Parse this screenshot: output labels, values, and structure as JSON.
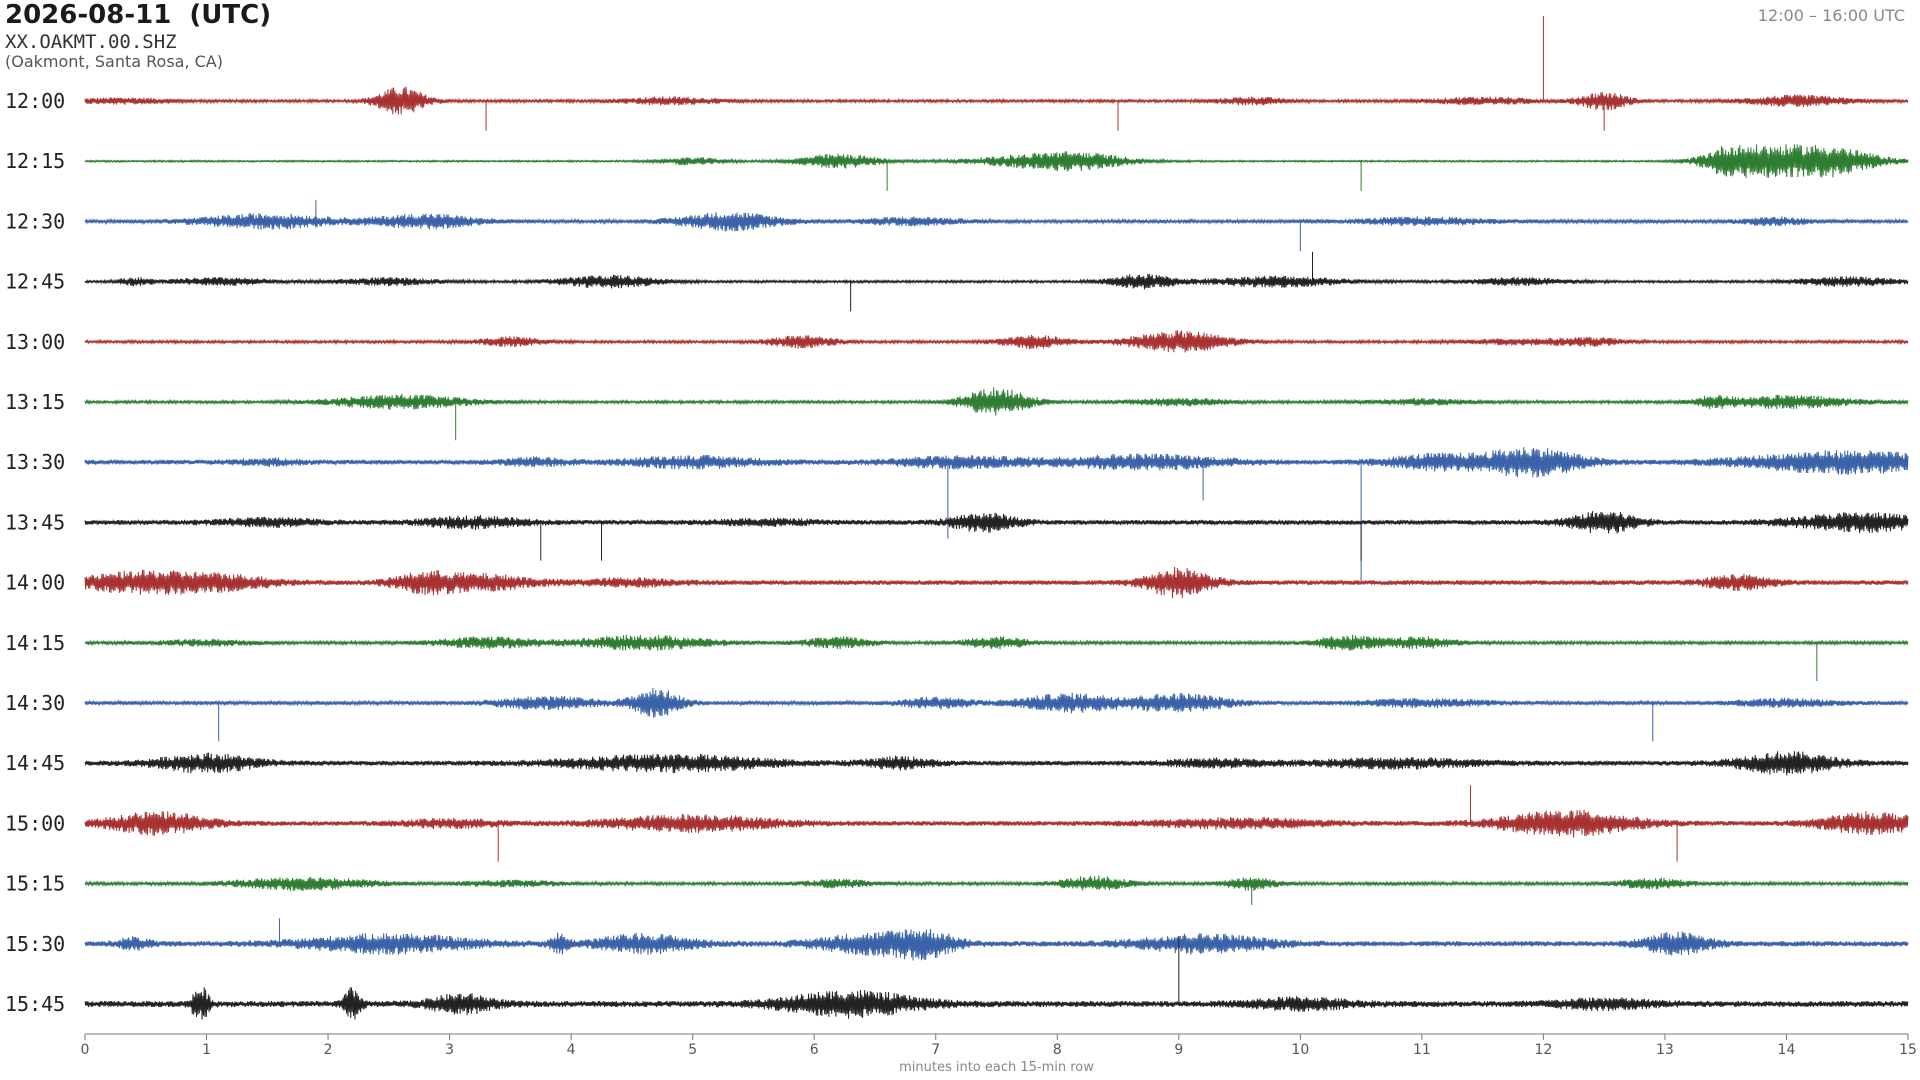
{
  "header": {
    "date": "2026-08-11  (UTC)",
    "station": "XX.OAKMT.00.SHZ",
    "location": "(Oakmont, Santa Rosa, CA)",
    "time_range": "12:00 – 16:00 UTC"
  },
  "chart_data": {
    "type": "helicorder",
    "title": "2026-08-11  (UTC)",
    "xlabel": "minutes into each 15-min row",
    "xlim": [
      0,
      15
    ],
    "x_ticks": [
      "0",
      "1",
      "2",
      "3",
      "4",
      "5",
      "6",
      "7",
      "8",
      "9",
      "10",
      "11",
      "12",
      "13",
      "14",
      "15"
    ],
    "colors": [
      "#a83232",
      "#2e7d32",
      "#3a62a8",
      "#222222"
    ],
    "rows": [
      {
        "label": "12:00",
        "bursts": [
          [
            2.6,
            0.15,
            0.8
          ],
          [
            0.3,
            0.3,
            0.15
          ],
          [
            4.8,
            0.3,
            0.2
          ],
          [
            9.6,
            0.2,
            0.2
          ],
          [
            12.5,
            0.15,
            0.5
          ],
          [
            14.1,
            0.3,
            0.3
          ],
          [
            11.5,
            0.3,
            0.2
          ]
        ],
        "spikes": [
          [
            12.0,
            1.0
          ],
          [
            3.3,
            -0.35
          ],
          [
            8.5,
            -0.35
          ],
          [
            12.5,
            -0.35
          ]
        ],
        "noise": 0.08
      },
      {
        "label": "12:15",
        "bursts": [
          [
            6.2,
            0.25,
            0.4
          ],
          [
            7.8,
            0.4,
            0.3
          ],
          [
            8.2,
            0.3,
            0.35
          ],
          [
            13.6,
            0.2,
            0.9
          ],
          [
            14.0,
            0.3,
            0.7
          ],
          [
            14.4,
            0.3,
            0.6
          ],
          [
            5.0,
            0.2,
            0.2
          ]
        ],
        "spikes": [
          [
            6.6,
            -0.35
          ],
          [
            10.5,
            -0.35
          ]
        ],
        "noise": 0.05
      },
      {
        "label": "12:30",
        "bursts": [
          [
            1.5,
            0.4,
            0.4
          ],
          [
            2.8,
            0.3,
            0.4
          ],
          [
            5.3,
            0.3,
            0.5
          ],
          [
            6.8,
            0.3,
            0.2
          ],
          [
            11.0,
            0.4,
            0.2
          ],
          [
            13.9,
            0.2,
            0.2
          ]
        ],
        "spikes": [
          [
            10.0,
            -0.35
          ],
          [
            1.9,
            0.25
          ]
        ],
        "noise": 0.1
      },
      {
        "label": "12:45",
        "bursts": [
          [
            1.1,
            0.3,
            0.2
          ],
          [
            2.5,
            0.3,
            0.2
          ],
          [
            4.3,
            0.3,
            0.35
          ],
          [
            8.7,
            0.2,
            0.4
          ],
          [
            9.8,
            0.4,
            0.3
          ],
          [
            11.8,
            0.3,
            0.2
          ],
          [
            14.5,
            0.3,
            0.25
          ],
          [
            0.4,
            0.1,
            0.2
          ]
        ],
        "spikes": [
          [
            10.1,
            0.35
          ],
          [
            6.3,
            -0.35
          ]
        ],
        "noise": 0.07
      },
      {
        "label": "13:00",
        "bursts": [
          [
            3.5,
            0.2,
            0.25
          ],
          [
            5.9,
            0.2,
            0.35
          ],
          [
            7.8,
            0.2,
            0.35
          ],
          [
            9.0,
            0.3,
            0.6
          ],
          [
            11.8,
            0.3,
            0.15
          ],
          [
            12.4,
            0.2,
            0.2
          ]
        ],
        "spikes": [],
        "noise": 0.08
      },
      {
        "label": "13:15",
        "bursts": [
          [
            2.6,
            0.4,
            0.4
          ],
          [
            7.5,
            0.2,
            0.8
          ],
          [
            9.0,
            0.3,
            0.2
          ],
          [
            11.0,
            0.3,
            0.15
          ],
          [
            14.0,
            0.4,
            0.35
          ],
          [
            13.4,
            0.1,
            0.25
          ]
        ],
        "spikes": [
          [
            3.05,
            -0.45
          ]
        ],
        "noise": 0.08
      },
      {
        "label": "13:30",
        "bursts": [
          [
            5.0,
            0.4,
            0.3
          ],
          [
            7.2,
            0.4,
            0.3
          ],
          [
            8.7,
            0.5,
            0.4
          ],
          [
            11.1,
            0.3,
            0.4
          ],
          [
            11.9,
            0.3,
            0.8
          ],
          [
            14.5,
            0.6,
            0.6
          ],
          [
            3.7,
            0.2,
            0.2
          ],
          [
            1.5,
            0.2,
            0.15
          ]
        ],
        "spikes": [
          [
            7.1,
            -0.9
          ],
          [
            9.2,
            -0.45
          ],
          [
            10.5,
            -1.4
          ]
        ],
        "noise": 0.14
      },
      {
        "label": "13:45",
        "bursts": [
          [
            3.2,
            0.3,
            0.3
          ],
          [
            7.4,
            0.2,
            0.5
          ],
          [
            12.5,
            0.2,
            0.6
          ],
          [
            14.6,
            0.4,
            0.5
          ],
          [
            1.5,
            0.3,
            0.2
          ],
          [
            5.6,
            0.3,
            0.15
          ]
        ],
        "spikes": [
          [
            3.75,
            -0.45
          ],
          [
            4.25,
            -0.45
          ],
          [
            10.5,
            -0.45
          ]
        ],
        "noise": 0.14
      },
      {
        "label": "14:00",
        "bursts": [
          [
            0.5,
            0.4,
            0.6
          ],
          [
            1.2,
            0.3,
            0.3
          ],
          [
            2.8,
            0.2,
            0.5
          ],
          [
            3.3,
            0.3,
            0.4
          ],
          [
            9.0,
            0.2,
            0.8
          ],
          [
            13.6,
            0.2,
            0.4
          ],
          [
            4.5,
            0.3,
            0.2
          ]
        ],
        "spikes": [],
        "noise": 0.14
      },
      {
        "label": "14:15",
        "bursts": [
          [
            3.3,
            0.3,
            0.3
          ],
          [
            4.6,
            0.4,
            0.4
          ],
          [
            6.2,
            0.2,
            0.3
          ],
          [
            7.5,
            0.2,
            0.3
          ],
          [
            10.4,
            0.2,
            0.4
          ],
          [
            11.0,
            0.2,
            0.3
          ],
          [
            1.0,
            0.3,
            0.15
          ]
        ],
        "spikes": [
          [
            14.25,
            -0.45
          ]
        ],
        "noise": 0.09
      },
      {
        "label": "14:30",
        "bursts": [
          [
            3.8,
            0.3,
            0.35
          ],
          [
            4.7,
            0.15,
            0.8
          ],
          [
            7.0,
            0.2,
            0.3
          ],
          [
            8.1,
            0.3,
            0.5
          ],
          [
            9.0,
            0.3,
            0.5
          ],
          [
            11.0,
            0.4,
            0.2
          ],
          [
            14.0,
            0.3,
            0.2
          ]
        ],
        "spikes": [
          [
            1.1,
            -0.45
          ],
          [
            12.9,
            -0.45
          ]
        ],
        "noise": 0.11
      },
      {
        "label": "14:45",
        "bursts": [
          [
            1.0,
            0.3,
            0.5
          ],
          [
            4.8,
            0.6,
            0.45
          ],
          [
            6.7,
            0.2,
            0.3
          ],
          [
            10.8,
            0.5,
            0.25
          ],
          [
            14.0,
            0.3,
            0.6
          ],
          [
            9.3,
            0.3,
            0.2
          ]
        ],
        "spikes": [],
        "noise": 0.14
      },
      {
        "label": "15:00",
        "bursts": [
          [
            0.6,
            0.3,
            0.6
          ],
          [
            5.0,
            0.5,
            0.45
          ],
          [
            9.5,
            0.5,
            0.25
          ],
          [
            12.2,
            0.4,
            0.7
          ],
          [
            14.7,
            0.3,
            0.6
          ],
          [
            3.0,
            0.3,
            0.2
          ]
        ],
        "spikes": [
          [
            11.4,
            0.45
          ],
          [
            3.4,
            -0.45
          ],
          [
            13.1,
            -0.45
          ]
        ],
        "noise": 0.14
      },
      {
        "label": "15:15",
        "bursts": [
          [
            1.8,
            0.4,
            0.35
          ],
          [
            8.3,
            0.2,
            0.4
          ],
          [
            9.6,
            0.15,
            0.35
          ],
          [
            12.9,
            0.2,
            0.3
          ],
          [
            3.5,
            0.3,
            0.15
          ],
          [
            6.2,
            0.2,
            0.2
          ]
        ],
        "spikes": [
          [
            9.6,
            -0.25
          ]
        ],
        "noise": 0.09
      },
      {
        "label": "15:30",
        "bursts": [
          [
            2.5,
            0.5,
            0.5
          ],
          [
            4.6,
            0.3,
            0.5
          ],
          [
            6.4,
            0.3,
            0.5
          ],
          [
            6.9,
            0.2,
            0.7
          ],
          [
            9.2,
            0.4,
            0.5
          ],
          [
            13.1,
            0.2,
            0.6
          ],
          [
            0.4,
            0.1,
            0.3
          ],
          [
            3.9,
            0.05,
            0.5
          ]
        ],
        "spikes": [
          [
            1.6,
            0.3
          ]
        ],
        "noise": 0.16
      },
      {
        "label": "15:45",
        "bursts": [
          [
            0.95,
            0.05,
            1.0
          ],
          [
            2.2,
            0.05,
            0.9
          ],
          [
            3.1,
            0.2,
            0.5
          ],
          [
            6.3,
            0.4,
            0.7
          ],
          [
            10.0,
            0.3,
            0.3
          ],
          [
            12.5,
            0.3,
            0.25
          ]
        ],
        "spikes": [
          [
            9.0,
            0.8
          ]
        ],
        "noise": 0.18
      }
    ]
  }
}
